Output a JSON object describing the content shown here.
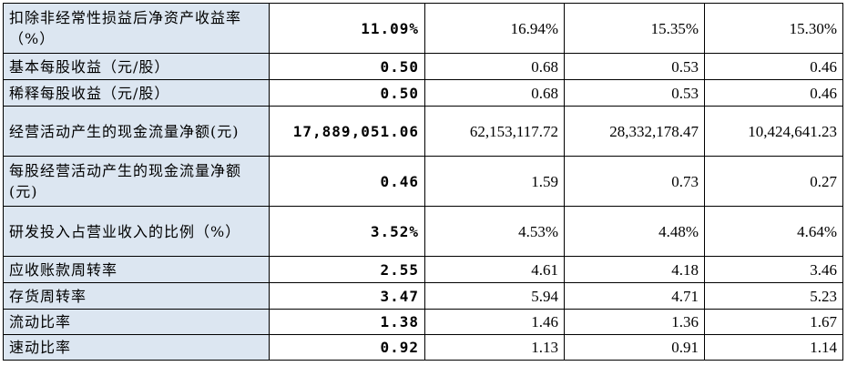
{
  "rows": [
    {
      "label": "扣除非经常性损益后净资产收益率（%）",
      "current": "11.09%",
      "v1": "16.94%",
      "v2": "15.35%",
      "v3": "15.30%"
    },
    {
      "label": "基本每股收益（元/股）",
      "current": "0.50",
      "v1": "0.68",
      "v2": "0.53",
      "v3": "0.46"
    },
    {
      "label": "稀释每股收益（元/股）",
      "current": "0.50",
      "v1": "0.68",
      "v2": "0.53",
      "v3": "0.46"
    },
    {
      "label": "经营活动产生的现金流量净额(元)",
      "current": "17,889,051.06",
      "v1": "62,153,117.72",
      "v2": "28,332,178.47",
      "v3": "10,424,641.23"
    },
    {
      "label": "每股经营活动产生的现金流量净额(元)",
      "current": "0.46",
      "v1": "1.59",
      "v2": "0.73",
      "v3": "0.27"
    },
    {
      "label": "研发投入占营业收入的比例（%）",
      "current": "3.52%",
      "v1": "4.53%",
      "v2": "4.48%",
      "v3": "4.64%"
    },
    {
      "label": "应收账款周转率",
      "current": "2.55",
      "v1": "4.61",
      "v2": "4.18",
      "v3": "3.46"
    },
    {
      "label": "存货周转率",
      "current": "3.47",
      "v1": "5.94",
      "v2": "4.71",
      "v3": "5.23"
    },
    {
      "label": "流动比率",
      "current": "1.38",
      "v1": "1.46",
      "v2": "1.36",
      "v3": "1.67"
    },
    {
      "label": "速动比率",
      "current": "0.92",
      "v1": "1.13",
      "v2": "0.91",
      "v3": "1.14"
    }
  ],
  "colors": {
    "label_bg": "#dce6f1",
    "border": "#000000"
  }
}
